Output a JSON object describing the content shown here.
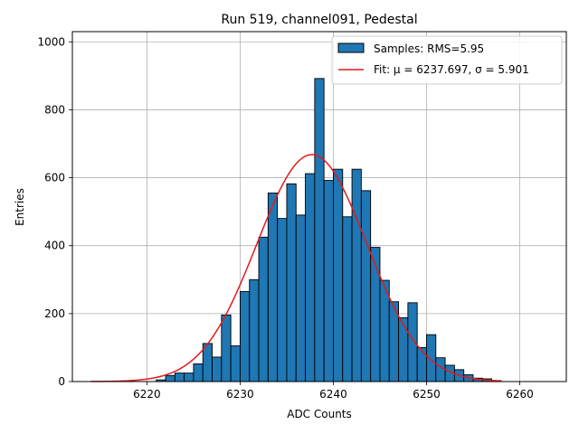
{
  "chart_data": {
    "type": "bar",
    "title": "Run 519, channel091, Pedestal",
    "xlabel": "ADC Counts",
    "ylabel": "Entries",
    "xlim": [
      6212,
      6265
    ],
    "ylim": [
      0,
      1030
    ],
    "xticks": [
      6220,
      6230,
      6240,
      6250,
      6260
    ],
    "yticks": [
      0,
      200,
      400,
      600,
      800,
      1000
    ],
    "grid": true,
    "legend_position": "top-right",
    "colors": {
      "bars": "#1f77b4",
      "bar_edge": "#000000",
      "fit": "#e31a1c"
    },
    "histogram": {
      "name": "Samples: RMS=5.95",
      "bin_edges": [
        6215,
        6216,
        6217,
        6218,
        6219,
        6220,
        6221,
        6222,
        6223,
        6224,
        6225,
        6226,
        6227,
        6228,
        6229,
        6230,
        6231,
        6232,
        6233,
        6234,
        6235,
        6236,
        6237,
        6238,
        6239,
        6240,
        6241,
        6242,
        6243,
        6244,
        6245,
        6246,
        6247,
        6248,
        6249,
        6250,
        6251,
        6252,
        6253,
        6254,
        6255,
        6256,
        6257,
        6258
      ],
      "counts": [
        0,
        0,
        0,
        0,
        0,
        0,
        5,
        18,
        25,
        25,
        52,
        112,
        72,
        196,
        105,
        265,
        300,
        425,
        555,
        480,
        582,
        490,
        612,
        892,
        592,
        625,
        485,
        625,
        562,
        395,
        298,
        235,
        188,
        232,
        100,
        138,
        70,
        48,
        35,
        20,
        10,
        8,
        3
      ]
    },
    "fit": {
      "name": "Fit: μ = 6237.697, σ = 5.901",
      "mu": 6237.697,
      "sigma": 5.901,
      "amplitude": 668,
      "x_range": [
        6214,
        6258
      ]
    }
  }
}
